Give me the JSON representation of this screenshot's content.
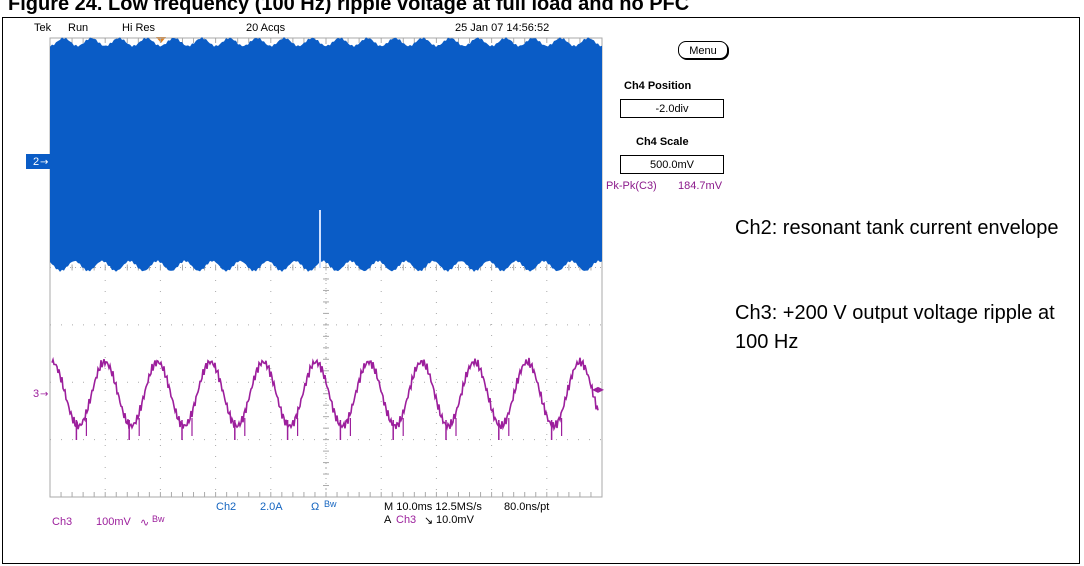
{
  "page": {
    "title": "Figure 24. Low frequency (100 Hz) ripple voltage at full load and no PFC"
  },
  "scope": {
    "status": {
      "brand": "Tek",
      "run": "Run",
      "mode": "Hi Res",
      "acqs": "20 Acqs",
      "datetime": "25 Jan 07 14:56:52"
    },
    "menu_label": "Menu",
    "panel": {
      "position_label": "Ch4 Position",
      "position_value": "-2.0div",
      "scale_label": "Ch4 Scale",
      "scale_value": "500.0mV"
    },
    "measurement": {
      "label": "Pk-Pk(C3)",
      "value": "184.7mV"
    },
    "markers": {
      "ch2": "2",
      "ch3": "3"
    },
    "readout": {
      "ch2_name": "Ch2",
      "ch2_scale": "2.0A",
      "ch2_unit_symbol": "Ω",
      "ch2_bw": "Bw",
      "ch3_name": "Ch3",
      "ch3_scale": "100mV",
      "ch3_coupling_symbol": "∿",
      "ch3_bw": "Bw",
      "timebase": "M 10.0ms 12.5MS/s",
      "record": "80.0ns/pt",
      "trigger_prefix": "A",
      "trigger_source": "Ch3",
      "trigger_slope": "↘",
      "trigger_level": "10.0mV"
    },
    "colors": {
      "ch2": "#0a5cc6",
      "ch3": "#9c1f9c",
      "grid": "#aaaaaa"
    }
  },
  "annotations": {
    "ch2": "Ch2: resonant tank current envelope",
    "ch3": "Ch3: +200 V output voltage ripple at 100 Hz"
  }
}
